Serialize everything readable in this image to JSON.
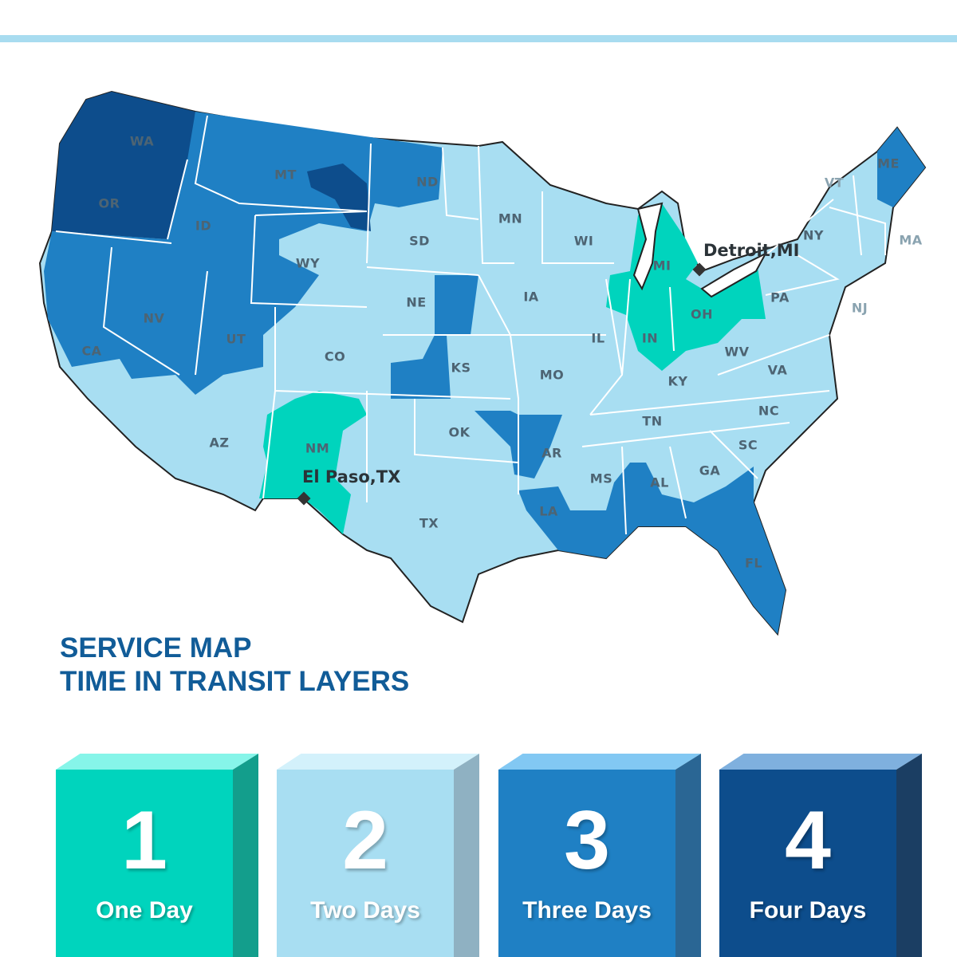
{
  "colors": {
    "one_day": "#00d4bd",
    "two_days": "#a8def2",
    "three_days": "#1f80c4",
    "four_days": "#0d4d8c",
    "accent_bar": "#a8dcf0",
    "title": "#115c98"
  },
  "title": {
    "line1": "SERVICE MAP",
    "line2": "TIME IN TRANSIT LAYERS"
  },
  "cities": [
    {
      "name": "Detroit,MI"
    },
    {
      "name": "El Paso,TX"
    }
  ],
  "states": [
    "WA",
    "OR",
    "ID",
    "MT",
    "ND",
    "SD",
    "WY",
    "NV",
    "CA",
    "UT",
    "CO",
    "AZ",
    "NM",
    "NE",
    "KS",
    "OK",
    "TX",
    "MN",
    "IA",
    "MO",
    "AR",
    "LA",
    "WI",
    "IL",
    "MI",
    "IN",
    "OH",
    "KY",
    "TN",
    "MS",
    "AL",
    "GA",
    "FL",
    "SC",
    "NC",
    "VA",
    "WV",
    "PA",
    "NY",
    "VT",
    "ME",
    "MA",
    "NJ"
  ],
  "legend": [
    {
      "number": "1",
      "label": "One Day"
    },
    {
      "number": "2",
      "label": "Two Days"
    },
    {
      "number": "3",
      "label": "Three Days"
    },
    {
      "number": "4",
      "label": "Four Days"
    }
  ]
}
